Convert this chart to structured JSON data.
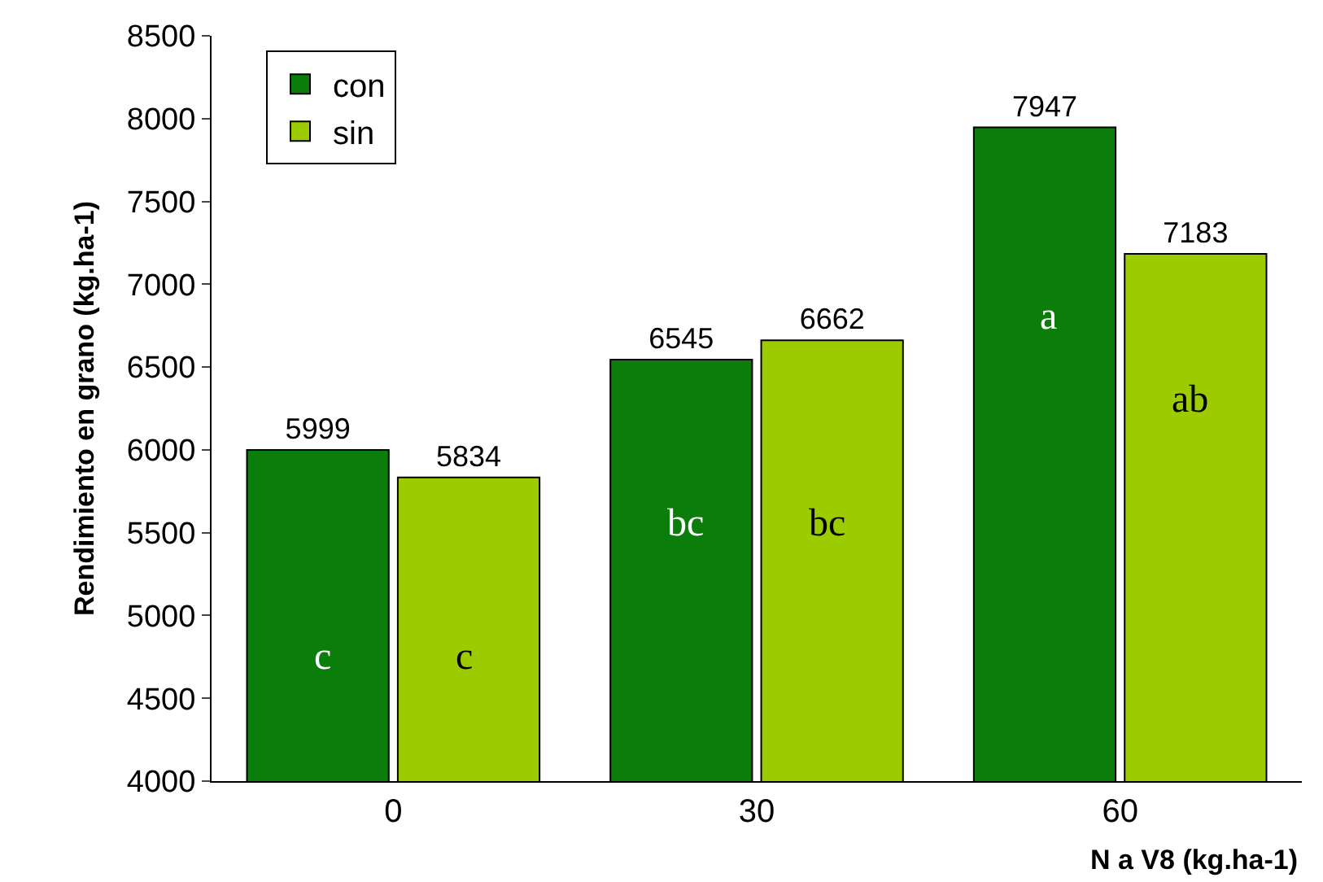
{
  "chart_data": {
    "type": "bar",
    "xlabel": "N a V8 (kg.ha-1)",
    "ylabel": "Rendimiento en grano (kg.ha-1)",
    "categories": [
      "0",
      "30",
      "60"
    ],
    "series": [
      {
        "name": "con",
        "color": "#0b7d0b",
        "values": [
          5999,
          6545,
          7947
        ]
      },
      {
        "name": "sin",
        "color": "#9ccc00",
        "values": [
          5834,
          6662,
          7183
        ]
      }
    ],
    "ylim": [
      4000,
      8500
    ],
    "yticks": [
      4000,
      4500,
      5000,
      5500,
      6000,
      6500,
      7000,
      7500,
      8000,
      8500
    ],
    "data_labels": true,
    "legend": "top left",
    "annotations": [
      {
        "text": "c",
        "x": "0",
        "y": 4750
      },
      {
        "text": "c",
        "x": "0",
        "y": 4750
      },
      {
        "text": "bc",
        "x": "30",
        "y": 5550
      },
      {
        "text": "bc",
        "x": "30",
        "y": 5550
      },
      {
        "text": "a",
        "x": "60",
        "y": 6800
      },
      {
        "text": "ab",
        "x": "60",
        "y": 6300
      }
    ]
  }
}
